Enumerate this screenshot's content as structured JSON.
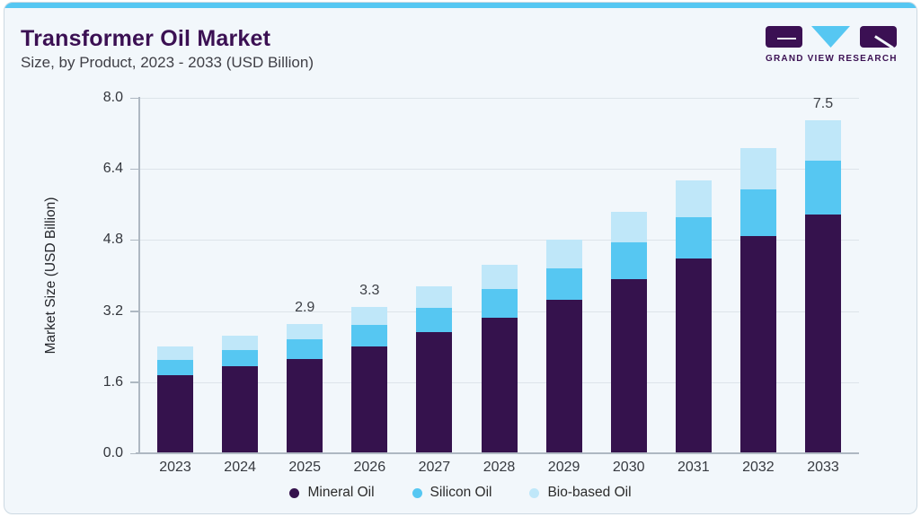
{
  "page": {
    "title": "Transformer Oil Market",
    "subtitle": "Size, by Product, 2023 - 2033 (USD Billion)",
    "logo_text": "GRAND VIEW RESEARCH"
  },
  "colors": {
    "accent_bar": "#56c7f2",
    "card_bg": "#f2f7fb",
    "title_purple": "#3b1053",
    "mineral_oil": "#35124d",
    "silicon_oil": "#56c7f2",
    "bio_based_oil": "#bfe7f9"
  },
  "chart_data": {
    "type": "bar",
    "stacked": true,
    "title": "Transformer Oil Market",
    "subtitle": "Size, by Product, 2023 - 2033 (USD Billion)",
    "xlabel": "",
    "ylabel": "Market Size (USD Billion)",
    "ylim": [
      0,
      8.0
    ],
    "yticks": [
      "8.0",
      "6.4",
      "4.8",
      "3.2",
      "1.6",
      "0.0"
    ],
    "grid": true,
    "legend_position": "bottom",
    "categories": [
      "2023",
      "2024",
      "2025",
      "2026",
      "2027",
      "2028",
      "2029",
      "2030",
      "2031",
      "2032",
      "2033"
    ],
    "series": [
      {
        "name": "Mineral Oil",
        "color": "#35124d",
        "values": [
          1.75,
          1.95,
          2.12,
          2.4,
          2.72,
          3.06,
          3.46,
          3.91,
          4.38,
          4.88,
          5.38
        ]
      },
      {
        "name": "Silicon Oil",
        "color": "#56c7f2",
        "values": [
          0.35,
          0.38,
          0.44,
          0.49,
          0.56,
          0.64,
          0.71,
          0.83,
          0.94,
          1.06,
          1.21
        ]
      },
      {
        "name": "Bio-based Oil",
        "color": "#bfe7f9",
        "values": [
          0.3,
          0.32,
          0.34,
          0.41,
          0.48,
          0.55,
          0.63,
          0.7,
          0.82,
          0.93,
          0.91
        ]
      }
    ],
    "totals": [
      2.4,
      2.65,
      2.9,
      3.3,
      3.76,
      4.25,
      4.8,
      5.44,
      6.14,
      6.87,
      7.5
    ],
    "total_labels": {
      "2025": "2.9",
      "2026": "3.3",
      "2033": "7.5"
    }
  }
}
